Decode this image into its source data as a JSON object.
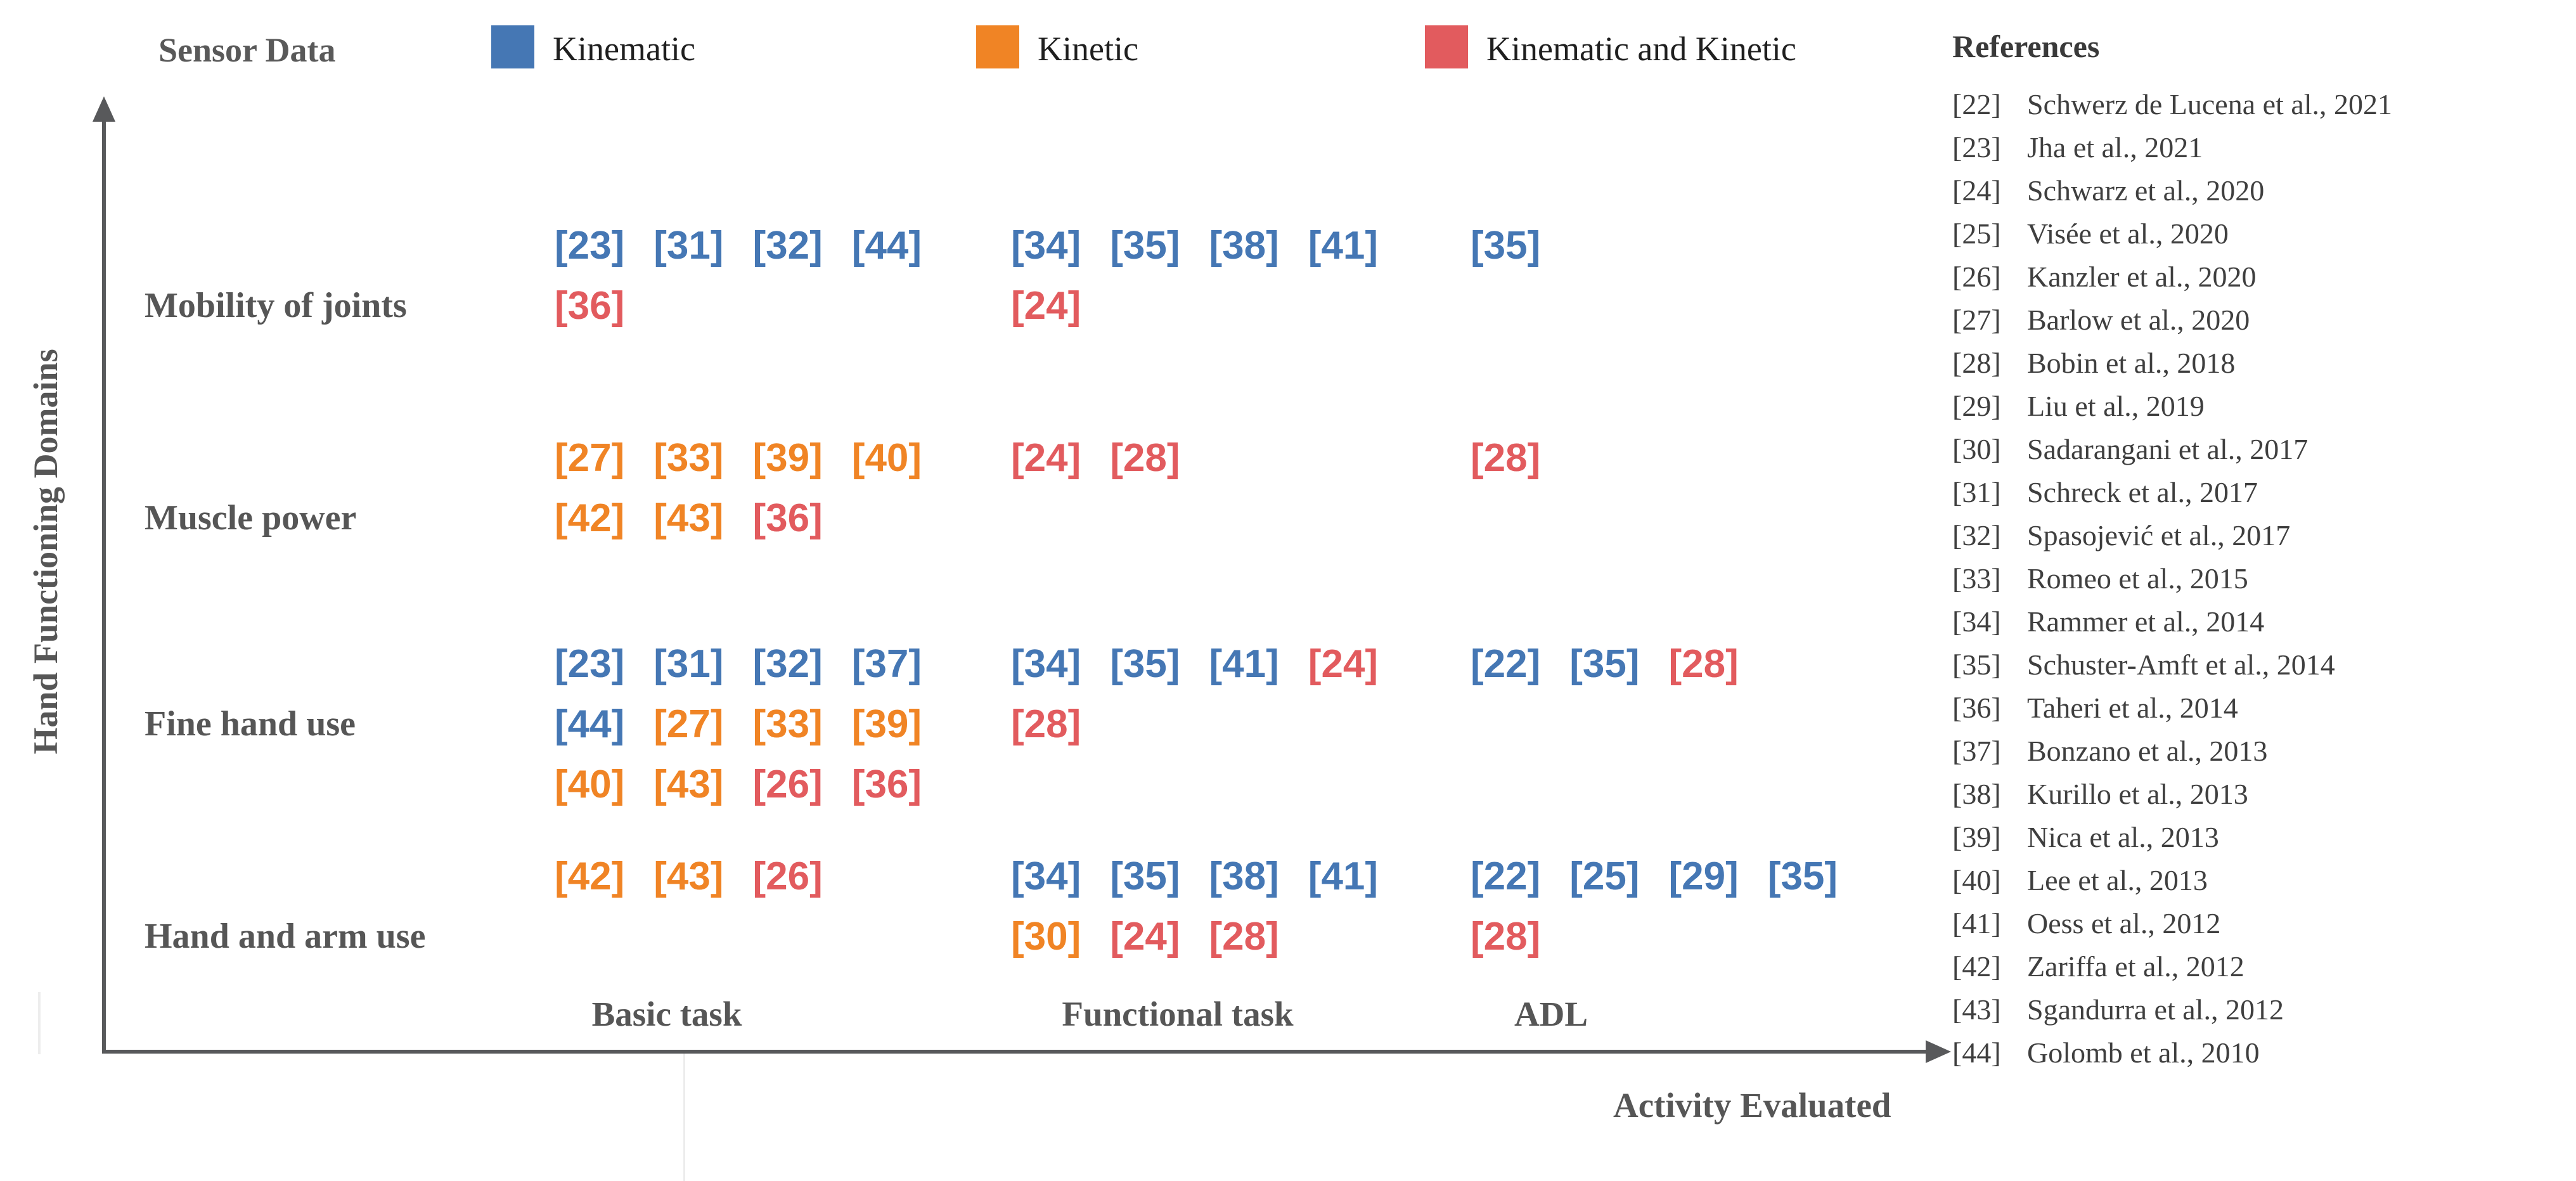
{
  "legend": {
    "title": "Sensor Data",
    "entries": [
      {
        "label": "Kinematic",
        "key": "kinematic",
        "color": "#4577B4"
      },
      {
        "label": "Kinetic",
        "key": "kinetic",
        "color": "#F08425"
      },
      {
        "label": "Kinematic and Kinetic",
        "key": "both",
        "color": "#E25B5E"
      }
    ]
  },
  "axes": {
    "x_label": "Activity Evaluated",
    "y_label": "Hand Functioning Domains"
  },
  "references": {
    "title": "References",
    "items": [
      {
        "num": "[22]",
        "text": "Schwerz de Lucena et al., 2021"
      },
      {
        "num": "[23]",
        "text": "Jha et al., 2021"
      },
      {
        "num": "[24]",
        "text": "Schwarz et al., 2020"
      },
      {
        "num": "[25]",
        "text": "Visée et al., 2020"
      },
      {
        "num": "[26]",
        "text": "Kanzler et al., 2020"
      },
      {
        "num": "[27]",
        "text": "Barlow et al., 2020"
      },
      {
        "num": "[28]",
        "text": "Bobin et al., 2018"
      },
      {
        "num": "[29]",
        "text": "Liu et al., 2019"
      },
      {
        "num": "[30]",
        "text": "Sadarangani et al., 2017"
      },
      {
        "num": "[31]",
        "text": "Schreck et al., 2017"
      },
      {
        "num": "[32]",
        "text": "Spasojević et al., 2017"
      },
      {
        "num": "[33]",
        "text": "Romeo et al., 2015"
      },
      {
        "num": "[34]",
        "text": "Rammer et al., 2014"
      },
      {
        "num": "[35]",
        "text": "Schuster-Amft et al., 2014"
      },
      {
        "num": "[36]",
        "text": "Taheri et al., 2014"
      },
      {
        "num": "[37]",
        "text": "Bonzano et al., 2013"
      },
      {
        "num": "[38]",
        "text": "Kurillo et al., 2013"
      },
      {
        "num": "[39]",
        "text": "Nica et al., 2013"
      },
      {
        "num": "[40]",
        "text": "Lee et al., 2013"
      },
      {
        "num": "[41]",
        "text": "Oess et al., 2012"
      },
      {
        "num": "[42]",
        "text": "Zariffa et al., 2012"
      },
      {
        "num": "[43]",
        "text": "Sgandurra et al., 2012"
      },
      {
        "num": "[44]",
        "text": "Golomb et al., 2010"
      }
    ]
  },
  "chart_data": {
    "type": "table",
    "title": "Sensor Data",
    "xlabel": "Activity Evaluated",
    "ylabel": "Hand Functioning Domains",
    "columns": [
      "Basic task",
      "Functional task",
      "ADL"
    ],
    "rows": [
      "Mobility of joints",
      "Muscle power",
      "Fine hand use",
      "Hand and arm use"
    ],
    "legend_position": "top",
    "colors": {
      "kinematic": "#4577B4",
      "kinetic": "#F08425",
      "both": "#E25B5E"
    },
    "cells": [
      {
        "row": 0,
        "col": 0,
        "lines": [
          [
            [
              "23",
              "kinematic"
            ],
            [
              "31",
              "kinematic"
            ],
            [
              "32",
              "kinematic"
            ],
            [
              "44",
              "kinematic"
            ]
          ],
          [
            [
              "36",
              "both"
            ]
          ]
        ]
      },
      {
        "row": 0,
        "col": 1,
        "lines": [
          [
            [
              "34",
              "kinematic"
            ],
            [
              "35",
              "kinematic"
            ],
            [
              "38",
              "kinematic"
            ],
            [
              "41",
              "kinematic"
            ]
          ],
          [
            [
              "24",
              "both"
            ]
          ]
        ]
      },
      {
        "row": 0,
        "col": 2,
        "lines": [
          [
            [
              "35",
              "kinematic"
            ]
          ]
        ]
      },
      {
        "row": 1,
        "col": 0,
        "lines": [
          [
            [
              "27",
              "kinetic"
            ],
            [
              "33",
              "kinetic"
            ],
            [
              "39",
              "kinetic"
            ],
            [
              "40",
              "kinetic"
            ]
          ],
          [
            [
              "42",
              "kinetic"
            ],
            [
              "43",
              "kinetic"
            ],
            [
              "36",
              "both"
            ]
          ]
        ]
      },
      {
        "row": 1,
        "col": 1,
        "lines": [
          [
            [
              "24",
              "both"
            ],
            [
              "28",
              "both"
            ]
          ]
        ]
      },
      {
        "row": 1,
        "col": 2,
        "lines": [
          [
            [
              "28",
              "both"
            ]
          ]
        ]
      },
      {
        "row": 2,
        "col": 0,
        "lines": [
          [
            [
              "23",
              "kinematic"
            ],
            [
              "31",
              "kinematic"
            ],
            [
              "32",
              "kinematic"
            ],
            [
              "37",
              "kinematic"
            ]
          ],
          [
            [
              "44",
              "kinematic"
            ],
            [
              "27",
              "kinetic"
            ],
            [
              "33",
              "kinetic"
            ],
            [
              "39",
              "kinetic"
            ]
          ],
          [
            [
              "40",
              "kinetic"
            ],
            [
              "43",
              "kinetic"
            ],
            [
              "26",
              "both"
            ],
            [
              "36",
              "both"
            ]
          ]
        ]
      },
      {
        "row": 2,
        "col": 1,
        "lines": [
          [
            [
              "34",
              "kinematic"
            ],
            [
              "35",
              "kinematic"
            ],
            [
              "41",
              "kinematic"
            ],
            [
              "24",
              "both"
            ]
          ],
          [
            [
              "28",
              "both"
            ]
          ]
        ]
      },
      {
        "row": 2,
        "col": 2,
        "lines": [
          [
            [
              "22",
              "kinematic"
            ],
            [
              "35",
              "kinematic"
            ],
            [
              "28",
              "both"
            ]
          ]
        ]
      },
      {
        "row": 3,
        "col": 0,
        "lines": [
          [
            [
              "42",
              "kinetic"
            ],
            [
              "43",
              "kinetic"
            ],
            [
              "26",
              "both"
            ]
          ]
        ]
      },
      {
        "row": 3,
        "col": 1,
        "lines": [
          [
            [
              "34",
              "kinematic"
            ],
            [
              "35",
              "kinematic"
            ],
            [
              "38",
              "kinematic"
            ],
            [
              "41",
              "kinematic"
            ]
          ],
          [
            [
              "30",
              "kinetic"
            ],
            [
              "24",
              "both"
            ],
            [
              "28",
              "both"
            ]
          ]
        ]
      },
      {
        "row": 3,
        "col": 2,
        "lines": [
          [
            [
              "22",
              "kinematic"
            ],
            [
              "25",
              "kinematic"
            ],
            [
              "29",
              "kinematic"
            ],
            [
              "35",
              "kinematic"
            ]
          ],
          [
            [
              "28",
              "both"
            ]
          ]
        ]
      }
    ]
  }
}
